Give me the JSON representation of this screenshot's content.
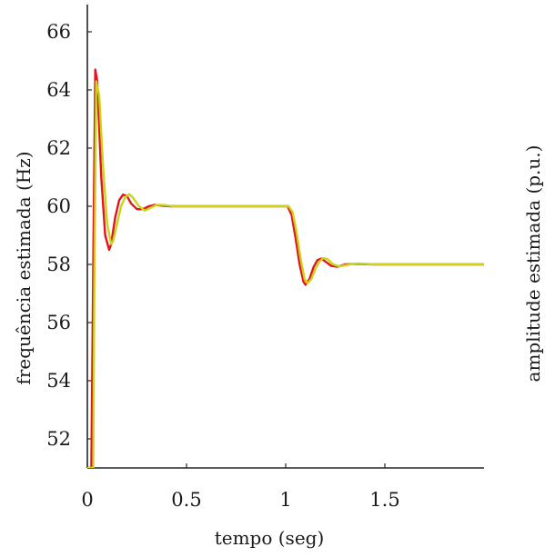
{
  "chart_data": [
    {
      "type": "line",
      "title": "",
      "xlabel": "tempo (seg)",
      "ylabel": "frequência estimada (Hz)",
      "xlim": [
        0,
        2
      ],
      "ylim": [
        51,
        67
      ],
      "xticks": [
        0,
        0.5,
        1,
        1.5
      ],
      "xtick_labels": [
        "0",
        "0.5",
        "1",
        "1.5"
      ],
      "yticks": [
        52,
        54,
        56,
        58,
        60,
        62,
        64,
        66
      ],
      "ytick_labels": [
        "52",
        "54",
        "56",
        "58",
        "60",
        "62",
        "64",
        "66"
      ],
      "grid": false,
      "legend": "none",
      "series": [
        {
          "color": "#e3141b",
          "x": [
            0.0,
            0.02,
            0.03,
            0.04,
            0.05,
            0.07,
            0.09,
            0.11,
            0.12,
            0.14,
            0.16,
            0.18,
            0.2,
            0.22,
            0.25,
            0.28,
            0.31,
            0.34,
            0.38,
            0.42,
            0.5,
            0.6,
            0.8,
            1.0,
            1.01,
            1.03,
            1.05,
            1.07,
            1.09,
            1.1,
            1.12,
            1.14,
            1.16,
            1.18,
            1.2,
            1.23,
            1.26,
            1.3,
            1.35,
            1.45,
            1.6,
            1.8,
            2.0
          ],
          "y": [
            51.0,
            51.0,
            58.0,
            64.7,
            64.3,
            61.0,
            59.0,
            58.5,
            58.7,
            59.6,
            60.2,
            60.4,
            60.35,
            60.1,
            59.9,
            59.9,
            60.0,
            60.05,
            60.02,
            60.0,
            60.0,
            60.0,
            60.0,
            60.0,
            60.0,
            59.7,
            58.9,
            58.0,
            57.4,
            57.3,
            57.5,
            57.9,
            58.15,
            58.2,
            58.1,
            57.95,
            57.92,
            58.0,
            58.02,
            58.0,
            58.0,
            58.0,
            58.0
          ]
        },
        {
          "color": "#c8d51c",
          "x": [
            0.0,
            0.03,
            0.035,
            0.045,
            0.06,
            0.08,
            0.1,
            0.12,
            0.13,
            0.15,
            0.17,
            0.19,
            0.21,
            0.23,
            0.26,
            0.29,
            0.32,
            0.35,
            0.39,
            0.43,
            0.5,
            0.6,
            0.8,
            1.0,
            1.015,
            1.035,
            1.055,
            1.075,
            1.095,
            1.11,
            1.13,
            1.15,
            1.17,
            1.19,
            1.21,
            1.24,
            1.27,
            1.31,
            1.36,
            1.46,
            1.6,
            1.8,
            2.0
          ],
          "y": [
            51.0,
            51.0,
            57.0,
            64.3,
            63.8,
            61.3,
            59.4,
            58.7,
            58.8,
            59.4,
            60.0,
            60.3,
            60.42,
            60.3,
            60.0,
            59.85,
            59.95,
            60.05,
            60.04,
            60.0,
            60.0,
            60.0,
            60.0,
            60.0,
            60.0,
            59.8,
            59.1,
            58.2,
            57.5,
            57.35,
            57.5,
            57.85,
            58.1,
            58.22,
            58.18,
            58.0,
            57.93,
            57.98,
            58.03,
            58.0,
            58.0,
            58.0,
            58.0
          ]
        }
      ]
    },
    {
      "type": "line",
      "title": "",
      "ylabel": "amplitude estimada (p.u.)",
      "xtick_labels": [
        "0"
      ]
    }
  ]
}
